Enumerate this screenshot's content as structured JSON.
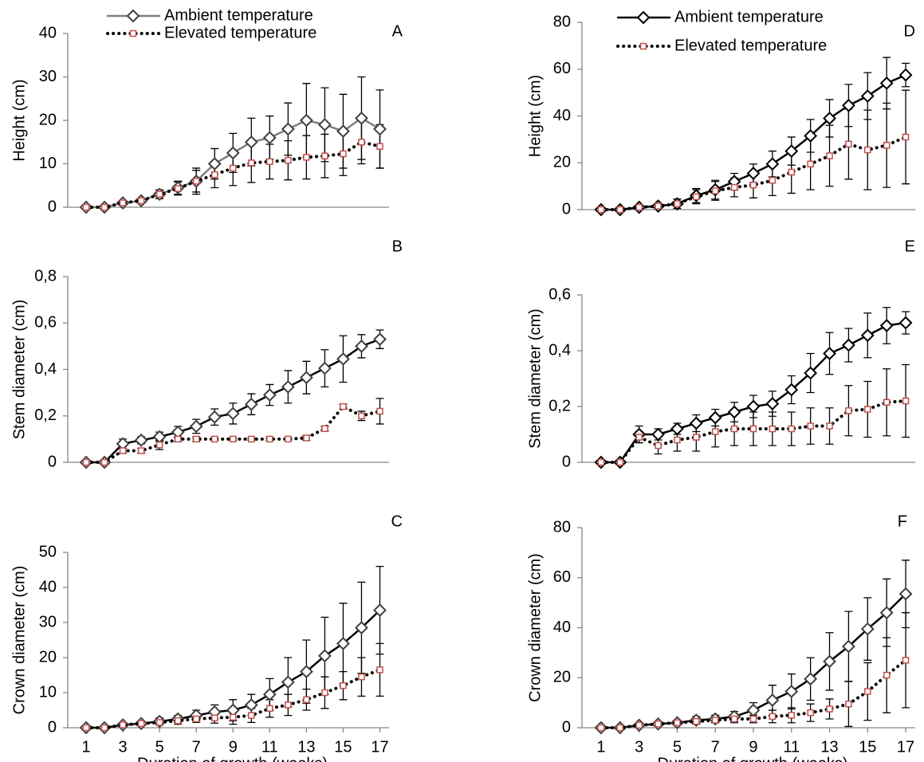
{
  "chart_data": [
    {
      "type": "line",
      "label": "A",
      "ylabel": "Height (cm)",
      "legend": "top",
      "x": [
        1,
        2,
        3,
        4,
        5,
        6,
        7,
        8,
        9,
        10,
        11,
        12,
        13,
        14,
        15,
        16,
        17
      ],
      "xlim": [
        0,
        17.5
      ],
      "ylim": [
        0,
        40
      ],
      "yticks": [
        0,
        10,
        20,
        30,
        40
      ],
      "series": [
        {
          "name": "Ambient temperature",
          "color": "#7f7f7f",
          "marker_color": "#404040",
          "marker": "diamond",
          "linestyle": "solid",
          "values": [
            0,
            0,
            1,
            1.5,
            3,
            4.5,
            6,
            10,
            12.5,
            15,
            16,
            18,
            20,
            19,
            17.5,
            20.5,
            18
          ],
          "errors": [
            0,
            0,
            0.5,
            0.5,
            1,
            1.5,
            3,
            3.5,
            4.5,
            5.5,
            5,
            6,
            8.5,
            8.5,
            8.5,
            9.5,
            9
          ]
        },
        {
          "name": "Elevated temperature",
          "color": "#000000",
          "marker_color": "#c0504d",
          "marker": "square",
          "linestyle": "dotted",
          "values": [
            0,
            0,
            1,
            1.5,
            3,
            4.3,
            6,
            7.5,
            9,
            10.2,
            10.5,
            10.8,
            11.5,
            11.8,
            12.3,
            15,
            14
          ],
          "errors": [
            0,
            0,
            0.5,
            0.5,
            1,
            1.5,
            2.5,
            3,
            4,
            4.5,
            4,
            4.5,
            5,
            5,
            5,
            5,
            5
          ]
        }
      ]
    },
    {
      "type": "line",
      "label": "B",
      "ylabel": "Stem diameter (cm)",
      "x": [
        1,
        2,
        3,
        4,
        5,
        6,
        7,
        8,
        9,
        10,
        11,
        12,
        13,
        14,
        15,
        16,
        17
      ],
      "xlim": [
        0,
        17.5
      ],
      "ylim": [
        0,
        0.8
      ],
      "yticks": [
        0,
        {
          "value": 0.2,
          "label": "0,2"
        },
        {
          "value": 0.4,
          "label": "0,4"
        },
        {
          "value": 0.6,
          "label": "0,6"
        },
        {
          "value": 0.8,
          "label": "0,8"
        }
      ],
      "series": [
        {
          "name": "Ambient temperature",
          "color": "#000000",
          "marker_color": "#404040",
          "marker": "diamond",
          "linestyle": "solid",
          "values": [
            0,
            0,
            0.08,
            0.095,
            0.11,
            0.13,
            0.155,
            0.195,
            0.21,
            0.25,
            0.29,
            0.325,
            0.365,
            0.405,
            0.445,
            0.5,
            0.53
          ],
          "errors": [
            0,
            0,
            0.02,
            0.015,
            0.02,
            0.025,
            0.03,
            0.035,
            0.045,
            0.045,
            0.045,
            0.07,
            0.07,
            0.08,
            0.1,
            0.05,
            0.04
          ]
        },
        {
          "name": "Elevated temperature",
          "color": "#000000",
          "marker_color": "#c0504d",
          "marker": "square",
          "linestyle": "dotted",
          "values": [
            0,
            0,
            0.05,
            0.05,
            0.075,
            0.1,
            0.1,
            0.1,
            0.1,
            0.1,
            0.1,
            0.1,
            0.105,
            0.145,
            0.24,
            0.2,
            0.22
          ],
          "errors": [
            0,
            0,
            0.01,
            0.01,
            0.02,
            0.01,
            0.01,
            0.005,
            0.005,
            0.005,
            0.005,
            0.005,
            0.01,
            0.01,
            0.01,
            0.02,
            0.055
          ]
        }
      ]
    },
    {
      "type": "line",
      "label": "C",
      "ylabel": "Crown diameter (cm)",
      "xlabel": "Duration  of growth (weeks)",
      "x": [
        1,
        2,
        3,
        4,
        5,
        6,
        7,
        8,
        9,
        10,
        11,
        12,
        13,
        14,
        15,
        16,
        17
      ],
      "xlim": [
        0,
        17.5
      ],
      "xticks": [
        1,
        3,
        5,
        7,
        9,
        11,
        13,
        15,
        17
      ],
      "ylim": [
        0,
        50
      ],
      "yticks": [
        0,
        10,
        20,
        30,
        40,
        50
      ],
      "series": [
        {
          "name": "Ambient temperature",
          "color": "#000000",
          "marker_color": "#404040",
          "marker": "diamond",
          "linestyle": "solid",
          "values": [
            0,
            0,
            0.8,
            1.2,
            1.8,
            2.5,
            3.5,
            4.5,
            5,
            6.5,
            9.5,
            13,
            16,
            20.5,
            24,
            28.5,
            33.5
          ],
          "errors": [
            0,
            0,
            0.5,
            0.5,
            1,
            1,
            1.5,
            2,
            3,
            3,
            4.5,
            7,
            9,
            11,
            11.5,
            13,
            12.5
          ]
        },
        {
          "name": "Elevated temperature",
          "color": "#000000",
          "marker_color": "#c0504d",
          "marker": "square",
          "linestyle": "dotted",
          "values": [
            0,
            0,
            0.8,
            1.2,
            1.5,
            2,
            2.5,
            2.8,
            3,
            3.5,
            5.5,
            6.5,
            8,
            10,
            12,
            14.5,
            16.5
          ],
          "errors": [
            0,
            0,
            0.5,
            0.5,
            0.5,
            1,
            1,
            1.5,
            2,
            2,
            2.5,
            3,
            3,
            4.5,
            4,
            5.5,
            7.5
          ]
        }
      ]
    },
    {
      "type": "line",
      "label": "D",
      "ylabel": "Height (cm)",
      "legend": "top",
      "x": [
        1,
        2,
        3,
        4,
        5,
        6,
        7,
        8,
        9,
        10,
        11,
        12,
        13,
        14,
        15,
        16,
        17
      ],
      "xlim": [
        0,
        17.5
      ],
      "ylim": [
        0,
        80
      ],
      "yticks": [
        0,
        20,
        40,
        60,
        80
      ],
      "series": [
        {
          "name": "Ambient temperature",
          "color": "#000000",
          "marker_color": "#000000",
          "marker": "diamond",
          "linestyle": "solid",
          "values": [
            0,
            0,
            1,
            1.5,
            2.5,
            6,
            8.5,
            12,
            15.5,
            19.5,
            25,
            31.5,
            39,
            44.5,
            48.5,
            54,
            57.5
          ],
          "errors": [
            0,
            0,
            0.5,
            1,
            2,
            3,
            4,
            3.5,
            4,
            5.5,
            6,
            7,
            8,
            9,
            10,
            11,
            5
          ]
        },
        {
          "name": "Elevated temperature",
          "color": "#000000",
          "marker_color": "#c0504d",
          "marker": "square",
          "linestyle": "dotted",
          "values": [
            0,
            0,
            1,
            1.5,
            2.5,
            5.5,
            8,
            9.5,
            10.5,
            12.5,
            16,
            19.5,
            23,
            28,
            25.5,
            27.5,
            31
          ],
          "errors": [
            0,
            0,
            0.5,
            1,
            2,
            3,
            4,
            4,
            5.5,
            6.5,
            9,
            11,
            13,
            15,
            17,
            18,
            20
          ]
        }
      ]
    },
    {
      "type": "line",
      "label": "E",
      "ylabel": "Stem diameter (cm)",
      "x": [
        1,
        2,
        3,
        4,
        5,
        6,
        7,
        8,
        9,
        10,
        11,
        12,
        13,
        14,
        15,
        16,
        17
      ],
      "xlim": [
        0,
        17.5
      ],
      "ylim": [
        0,
        0.6
      ],
      "yticks": [
        0,
        {
          "value": 0.2,
          "label": "0,2"
        },
        {
          "value": 0.4,
          "label": "0,4"
        },
        {
          "value": 0.6,
          "label": "0,6"
        }
      ],
      "series": [
        {
          "name": "Ambient temperature",
          "color": "#000000",
          "marker_color": "#000000",
          "marker": "diamond",
          "linestyle": "solid",
          "values": [
            0,
            0,
            0.1,
            0.1,
            0.12,
            0.14,
            0.16,
            0.18,
            0.2,
            0.21,
            0.26,
            0.32,
            0.39,
            0.42,
            0.455,
            0.49,
            0.5
          ],
          "errors": [
            0,
            0,
            0.03,
            0.02,
            0.02,
            0.03,
            0.03,
            0.035,
            0.04,
            0.045,
            0.05,
            0.07,
            0.075,
            0.06,
            0.08,
            0.065,
            0.04
          ]
        },
        {
          "name": "Elevated temperature",
          "color": "#000000",
          "marker_color": "#c0504d",
          "marker": "square",
          "linestyle": "dotted",
          "values": [
            0,
            0,
            0.09,
            0.06,
            0.08,
            0.09,
            0.11,
            0.12,
            0.12,
            0.12,
            0.12,
            0.13,
            0.13,
            0.185,
            0.19,
            0.215,
            0.22
          ],
          "errors": [
            0,
            0,
            0.02,
            0.03,
            0.04,
            0.05,
            0.055,
            0.06,
            0.06,
            0.06,
            0.06,
            0.065,
            0.065,
            0.09,
            0.1,
            0.12,
            0.13
          ]
        }
      ]
    },
    {
      "type": "line",
      "label": "F",
      "ylabel": "Crown diameter (cm)",
      "xlabel": "Duration of growth (weeks)",
      "x": [
        1,
        2,
        3,
        4,
        5,
        6,
        7,
        8,
        9,
        10,
        11,
        12,
        13,
        14,
        15,
        16,
        17
      ],
      "xlim": [
        0,
        17.5
      ],
      "xticks": [
        1,
        3,
        5,
        7,
        9,
        11,
        13,
        15,
        17
      ],
      "ylim": [
        0,
        80
      ],
      "yticks": [
        0,
        20,
        40,
        60,
        80
      ],
      "series": [
        {
          "name": "Ambient temperature",
          "color": "#000000",
          "marker_color": "#404040",
          "marker": "diamond",
          "linestyle": "solid",
          "values": [
            0,
            0,
            1,
            1.5,
            2,
            3,
            3.5,
            4.5,
            7,
            11,
            14.5,
            19.5,
            26.5,
            32.5,
            39.5,
            46,
            53.5
          ],
          "errors": [
            0,
            0,
            0.5,
            0.5,
            1,
            1.5,
            1.5,
            2,
            3,
            6,
            7,
            8.5,
            11.5,
            14,
            12.5,
            13.5,
            13.5
          ]
        },
        {
          "name": "Elevated temperature",
          "color": "#000000",
          "marker_color": "#c0504d",
          "marker": "square",
          "linestyle": "dotted",
          "values": [
            0,
            0,
            1,
            1.5,
            2,
            2.5,
            3,
            3.5,
            3.5,
            4.5,
            5,
            6,
            7.5,
            9.5,
            14.5,
            21,
            27
          ],
          "errors": [
            0,
            0,
            0.5,
            0.5,
            1,
            1,
            1,
            1.5,
            1.5,
            2.5,
            3,
            3.5,
            4,
            9,
            11.5,
            15,
            19
          ]
        }
      ]
    }
  ]
}
